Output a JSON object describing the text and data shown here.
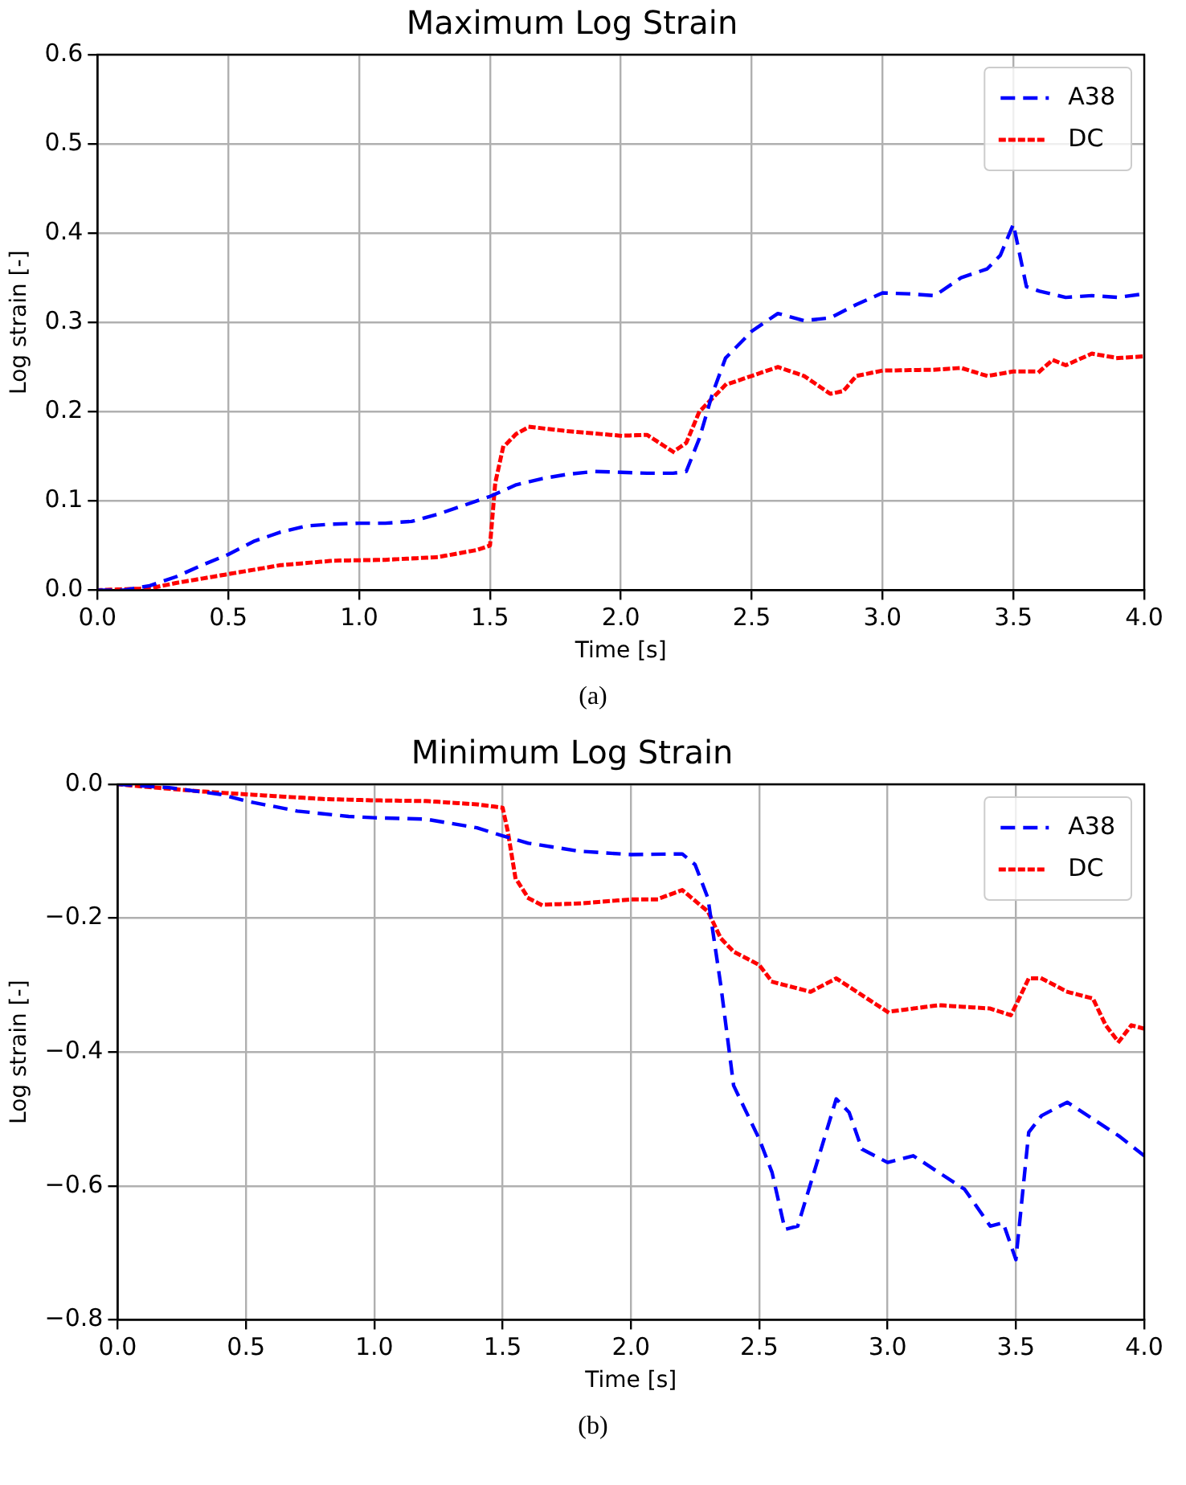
{
  "chart_data": [
    {
      "type": "line",
      "title": "Maximum Log Strain",
      "xlabel": "Time [s]",
      "ylabel": "Log strain [-]",
      "annotations": [
        "(a)"
      ],
      "xlim": [
        0,
        4
      ],
      "ylim": [
        0,
        0.6
      ],
      "xticks": [
        {
          "value": 0,
          "label": "0.0"
        },
        {
          "value": 0.5,
          "label": "0.5"
        },
        {
          "value": 1,
          "label": "1.0"
        },
        {
          "value": 1.5,
          "label": "1.5"
        },
        {
          "value": 2,
          "label": "2.0"
        },
        {
          "value": 2.5,
          "label": "2.5"
        },
        {
          "value": 3,
          "label": "3.0"
        },
        {
          "value": 3.5,
          "label": "3.5"
        },
        {
          "value": 4,
          "label": "4.0"
        }
      ],
      "yticks": [
        {
          "value": 0,
          "label": "0.0"
        },
        {
          "value": 0.1,
          "label": "0.1"
        },
        {
          "value": 0.2,
          "label": "0.2"
        },
        {
          "value": 0.3,
          "label": "0.3"
        },
        {
          "value": 0.4,
          "label": "0.4"
        },
        {
          "value": 0.5,
          "label": "0.5"
        },
        {
          "value": 0.6,
          "label": "0.6"
        }
      ],
      "grid": true,
      "legend": "top right",
      "marker": "none",
      "series": [
        {
          "name": "A38",
          "color": "#0000ff",
          "line_style": "dashed",
          "x": [
            0,
            0.1,
            0.2,
            0.3,
            0.4,
            0.5,
            0.6,
            0.7,
            0.8,
            0.9,
            1.0,
            1.1,
            1.2,
            1.3,
            1.4,
            1.5,
            1.6,
            1.7,
            1.8,
            1.9,
            2.0,
            2.1,
            2.2,
            2.25,
            2.3,
            2.35,
            2.4,
            2.5,
            2.6,
            2.7,
            2.8,
            2.9,
            3.0,
            3.1,
            3.2,
            3.3,
            3.4,
            3.45,
            3.5,
            3.55,
            3.6,
            3.7,
            3.8,
            3.9,
            4.0
          ],
          "values": [
            0,
            0,
            0.005,
            0.015,
            0.028,
            0.04,
            0.055,
            0.065,
            0.072,
            0.074,
            0.075,
            0.075,
            0.077,
            0.085,
            0.095,
            0.105,
            0.118,
            0.125,
            0.13,
            0.133,
            0.132,
            0.131,
            0.131,
            0.133,
            0.17,
            0.22,
            0.26,
            0.29,
            0.31,
            0.302,
            0.305,
            0.32,
            0.333,
            0.332,
            0.33,
            0.35,
            0.36,
            0.375,
            0.41,
            0.34,
            0.335,
            0.328,
            0.33,
            0.328,
            0.332
          ]
        },
        {
          "name": "DC",
          "color": "#ff0000",
          "line_style": "dotted",
          "x": [
            0,
            0.2,
            0.3,
            0.5,
            0.7,
            0.9,
            1.1,
            1.3,
            1.45,
            1.5,
            1.52,
            1.55,
            1.6,
            1.65,
            1.8,
            2.0,
            2.1,
            2.2,
            2.25,
            2.3,
            2.4,
            2.5,
            2.6,
            2.7,
            2.8,
            2.85,
            2.9,
            3.0,
            3.2,
            3.3,
            3.4,
            3.5,
            3.6,
            3.65,
            3.7,
            3.8,
            3.9,
            4.0
          ],
          "values": [
            0,
            0.002,
            0.008,
            0.018,
            0.028,
            0.033,
            0.034,
            0.037,
            0.045,
            0.05,
            0.12,
            0.16,
            0.175,
            0.183,
            0.178,
            0.173,
            0.174,
            0.155,
            0.165,
            0.2,
            0.23,
            0.24,
            0.25,
            0.24,
            0.22,
            0.223,
            0.24,
            0.246,
            0.247,
            0.249,
            0.24,
            0.245,
            0.245,
            0.258,
            0.252,
            0.265,
            0.26,
            0.262
          ]
        }
      ]
    },
    {
      "type": "line",
      "title": "Minimum Log Strain",
      "xlabel": "Time [s]",
      "ylabel": "Log strain [-]",
      "annotations": [
        "(b)"
      ],
      "xlim": [
        0,
        4
      ],
      "ylim": [
        -0.8,
        0
      ],
      "xticks": [
        {
          "value": 0,
          "label": "0.0"
        },
        {
          "value": 0.5,
          "label": "0.5"
        },
        {
          "value": 1,
          "label": "1.0"
        },
        {
          "value": 1.5,
          "label": "1.5"
        },
        {
          "value": 2,
          "label": "2.0"
        },
        {
          "value": 2.5,
          "label": "2.5"
        },
        {
          "value": 3,
          "label": "3.0"
        },
        {
          "value": 3.5,
          "label": "3.5"
        },
        {
          "value": 4,
          "label": "4.0"
        }
      ],
      "yticks": [
        {
          "value": -0.8,
          "label": "−0.8"
        },
        {
          "value": -0.6,
          "label": "−0.6"
        },
        {
          "value": -0.4,
          "label": "−0.4"
        },
        {
          "value": -0.2,
          "label": "−0.2"
        },
        {
          "value": 0,
          "label": "0.0"
        }
      ],
      "grid": true,
      "legend": "top right",
      "marker": "none",
      "series": [
        {
          "name": "A38",
          "color": "#0000ff",
          "line_style": "dashed",
          "x": [
            0,
            0.2,
            0.4,
            0.5,
            0.7,
            0.9,
            1.0,
            1.2,
            1.4,
            1.5,
            1.6,
            1.8,
            2.0,
            2.2,
            2.25,
            2.3,
            2.35,
            2.4,
            2.5,
            2.55,
            2.6,
            2.65,
            2.8,
            2.85,
            2.9,
            3.0,
            3.1,
            3.2,
            3.3,
            3.4,
            3.45,
            3.5,
            3.55,
            3.6,
            3.7,
            3.8,
            3.9,
            4.0
          ],
          "values": [
            0,
            -0.005,
            -0.015,
            -0.025,
            -0.04,
            -0.048,
            -0.05,
            -0.052,
            -0.065,
            -0.077,
            -0.088,
            -0.1,
            -0.105,
            -0.104,
            -0.12,
            -0.17,
            -0.3,
            -0.45,
            -0.53,
            -0.58,
            -0.665,
            -0.66,
            -0.47,
            -0.49,
            -0.545,
            -0.565,
            -0.555,
            -0.58,
            -0.605,
            -0.66,
            -0.655,
            -0.71,
            -0.52,
            -0.495,
            -0.475,
            -0.5,
            -0.525,
            -0.555
          ]
        },
        {
          "name": "DC",
          "color": "#ff0000",
          "line_style": "dotted",
          "x": [
            0,
            0.3,
            0.5,
            0.8,
            1.0,
            1.2,
            1.4,
            1.5,
            1.52,
            1.55,
            1.6,
            1.65,
            1.8,
            2.0,
            2.1,
            2.2,
            2.3,
            2.35,
            2.4,
            2.5,
            2.55,
            2.7,
            2.8,
            2.9,
            3.0,
            3.1,
            3.2,
            3.4,
            3.48,
            3.5,
            3.55,
            3.6,
            3.7,
            3.8,
            3.85,
            3.9,
            3.95,
            4.0
          ],
          "values": [
            0,
            -0.01,
            -0.015,
            -0.022,
            -0.024,
            -0.025,
            -0.03,
            -0.035,
            -0.07,
            -0.14,
            -0.17,
            -0.18,
            -0.178,
            -0.172,
            -0.172,
            -0.158,
            -0.19,
            -0.23,
            -0.25,
            -0.27,
            -0.295,
            -0.31,
            -0.29,
            -0.315,
            -0.34,
            -0.335,
            -0.33,
            -0.335,
            -0.345,
            -0.33,
            -0.29,
            -0.29,
            -0.31,
            -0.32,
            -0.36,
            -0.385,
            -0.36,
            -0.365
          ]
        }
      ]
    }
  ]
}
